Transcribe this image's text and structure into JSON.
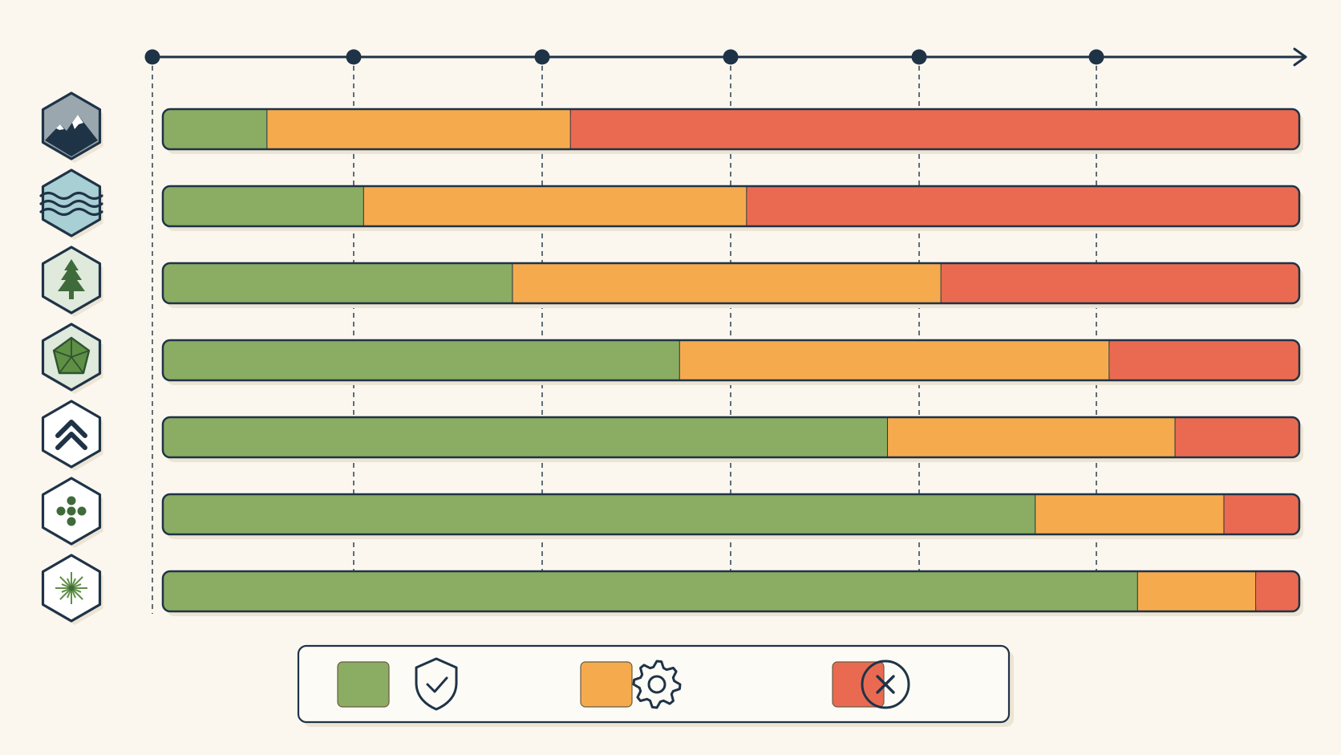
{
  "colors": {
    "background": "#fbf7ef",
    "outline": "#1f3347",
    "safe": "#8aad63",
    "caution": "#f5ab4d",
    "danger": "#ea6a51"
  },
  "chart_data": {
    "type": "bar",
    "orientation": "horizontal",
    "stacked": true,
    "x_ticks": 6,
    "x_axis_arrow": true,
    "grid": "dashed-vertical",
    "categories": [
      {
        "icon": "mountain-icon"
      },
      {
        "icon": "water-waves-icon"
      },
      {
        "icon": "pine-tree-icon"
      },
      {
        "icon": "crystal-gem-icon"
      },
      {
        "icon": "double-chevron-up-icon"
      },
      {
        "icon": "dots-cluster-icon"
      },
      {
        "icon": "starburst-icon"
      }
    ],
    "series": [
      {
        "color": "#8aad63",
        "legend_icon": "shield-check-icon",
        "values": [
          0.092,
          0.177,
          0.308,
          0.455,
          0.638,
          0.768,
          0.858
        ]
      },
      {
        "color": "#f5ab4d",
        "legend_icon": "gear-icon",
        "values": [
          0.267,
          0.337,
          0.377,
          0.378,
          0.253,
          0.166,
          0.104
        ]
      },
      {
        "color": "#ea6a51",
        "legend_icon": "close-circle-icon",
        "values": [
          0.641,
          0.486,
          0.315,
          0.167,
          0.109,
          0.066,
          0.038
        ]
      }
    ],
    "legend_position": "bottom"
  }
}
